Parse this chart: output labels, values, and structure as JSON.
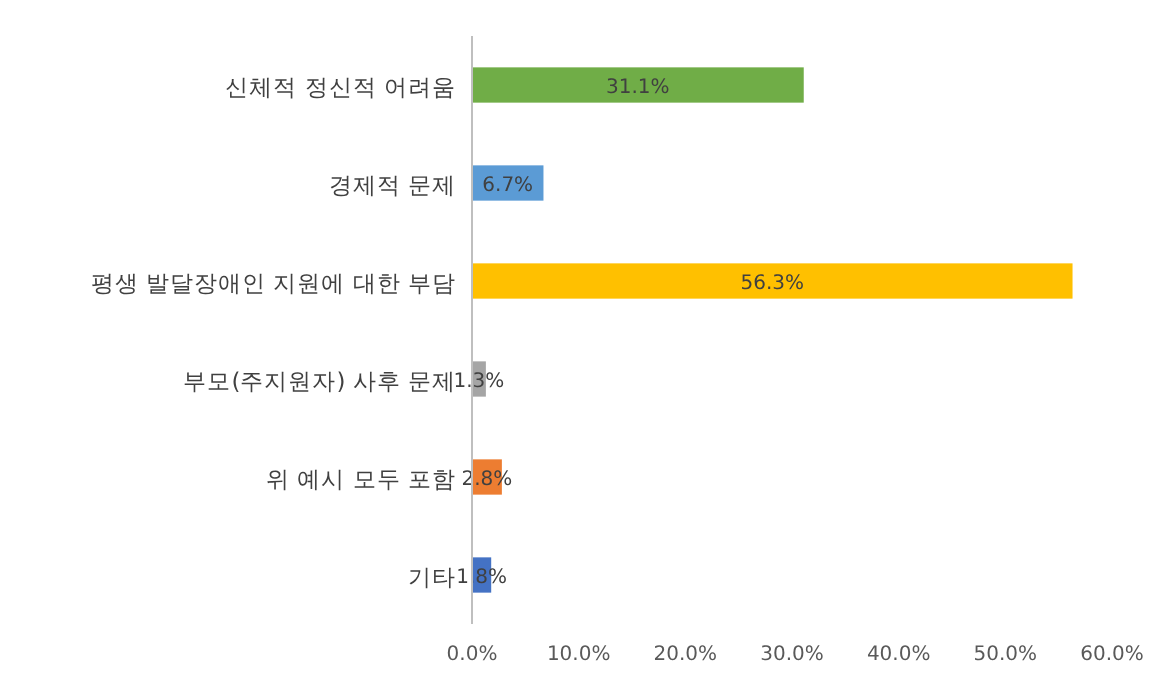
{
  "chart_data": {
    "type": "bar",
    "orientation": "horizontal",
    "categories": [
      "신체적 정신적 어려움",
      "경제적 문제",
      "평생 발달장애인 지원에 대한 부담",
      "부모(주지원자) 사후 문제",
      "위 예시 모두 포함",
      "기타"
    ],
    "values": [
      31.1,
      6.7,
      56.3,
      1.3,
      2.8,
      1.8
    ],
    "colors": [
      "#70ad47",
      "#5b9bd5",
      "#ffc000",
      "#a5a5a5",
      "#ed7d31",
      "#4472c4"
    ],
    "value_labels": [
      "31.1%",
      "6.7%",
      "56.3%",
      "1.3%",
      "2.8%",
      "1.8%"
    ],
    "xlim": [
      0,
      60
    ],
    "xticks": [
      {
        "value": 0,
        "label": "0.0%"
      },
      {
        "value": 10,
        "label": "10.0%"
      },
      {
        "value": 20,
        "label": "20.0%"
      },
      {
        "value": 30,
        "label": "30.0%"
      },
      {
        "value": 40,
        "label": "40.0%"
      },
      {
        "value": 50,
        "label": "50.0%"
      },
      {
        "value": 60,
        "label": "60.0%"
      }
    ],
    "grid": false
  }
}
